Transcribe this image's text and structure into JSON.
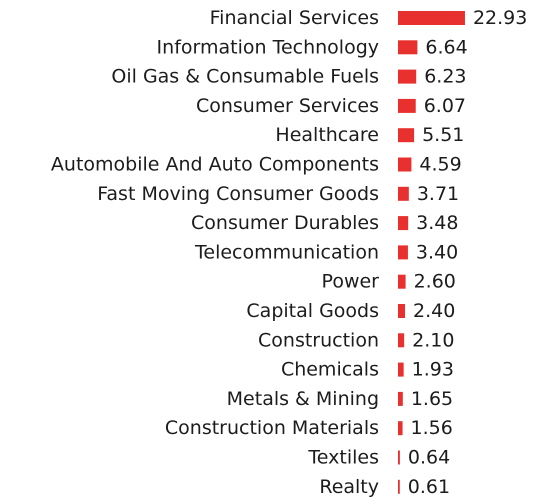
{
  "chart_data": {
    "type": "bar",
    "orientation": "horizontal",
    "bar_color": "#e8302e",
    "text_color": "#1c1c1c",
    "categories": [
      "Financial Services",
      "Information Technology",
      "Oil Gas & Consumable Fuels",
      "Consumer Services",
      "Healthcare",
      "Automobile And Auto Components",
      "Fast Moving Consumer Goods",
      "Consumer Durables",
      "Telecommunication",
      "Power",
      "Capital Goods",
      "Construction",
      "Chemicals",
      "Metals & Mining",
      "Construction Materials",
      "Textiles",
      "Realty"
    ],
    "values": [
      22.93,
      6.64,
      6.23,
      6.07,
      5.51,
      4.59,
      3.71,
      3.48,
      3.4,
      2.6,
      2.4,
      2.1,
      1.93,
      1.65,
      1.56,
      0.64,
      0.61
    ],
    "value_labels": [
      "22.93",
      "6.64",
      "6.23",
      "6.07",
      "5.51",
      "4.59",
      "3.71",
      "3.48",
      "3.40",
      "2.60",
      "2.40",
      "2.10",
      "1.93",
      "1.65",
      "1.56",
      "0.64",
      "0.61"
    ],
    "title": "",
    "xlabel": "",
    "ylabel": "",
    "grid": false,
    "legend": "none"
  }
}
